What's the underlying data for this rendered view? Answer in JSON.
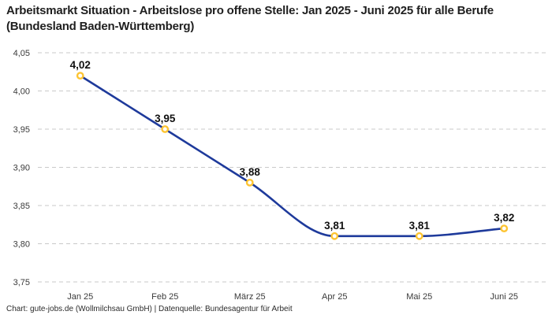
{
  "header": {
    "title": "Arbeitsmarkt Situation - Arbeitslose pro offene Stelle: Jan 2025 - Juni 2025 für alle Berufe (Bundesland Baden-Württemberg)"
  },
  "footer": {
    "attribution": "Chart: gute-jobs.de (Wollmilchsau GmbH) | Datenquelle: Bundesagentur für Arbeit"
  },
  "chart_data": {
    "type": "line",
    "title": "Arbeitsmarkt Situation - Arbeitslose pro offene Stelle: Jan 2025 - Juni 2025 für alle Berufe (Bundesland Baden-Württemberg)",
    "categories": [
      "Jan 25",
      "Feb 25",
      "März 25",
      "Apr 25",
      "Mai 25",
      "Juni 25"
    ],
    "values": [
      4.02,
      3.95,
      3.88,
      3.81,
      3.81,
      3.82
    ],
    "point_labels": [
      "4,02",
      "3,95",
      "3,88",
      "3,81",
      "3,81",
      "3,82"
    ],
    "xlabel": "",
    "ylabel": "",
    "ylim": [
      3.75,
      4.05
    ],
    "y_tick_values": [
      4.05,
      4.0,
      3.95,
      3.9,
      3.85,
      3.8,
      3.75
    ],
    "y_tick_labels": [
      "4,05",
      "4,00",
      "3,95",
      "3,90",
      "3,85",
      "3,80",
      "3,75"
    ],
    "legend": "none",
    "grid": "horizontal-dashed",
    "curve": "monotone",
    "colors": {
      "line": "#1e3a9b",
      "marker_ring": "#fdc431",
      "marker_fill": "#ffffff",
      "grid": "#c9c9c9",
      "tick_text": "#3a3a3a",
      "point_label_text": "#111111"
    }
  }
}
